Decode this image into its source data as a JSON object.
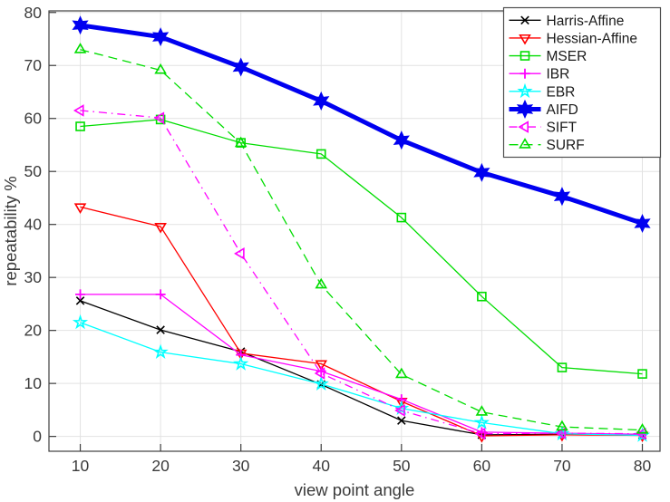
{
  "colors": {
    "background": "#ffffff",
    "grid": "#e2e2e2",
    "axis": "#3f3f3f",
    "tick_label": "#3b3b3b",
    "legend_border": "#4f4f4f",
    "harris": "#000000",
    "hessian": "#ff0000",
    "mser": "#00dd00",
    "ibr": "#ff00ff",
    "ebr": "#00ffff",
    "aifd": "#0000f0",
    "sift": "#ff00ff",
    "surf": "#00dd00"
  },
  "chart_data": {
    "type": "line",
    "xlabel": "view point angle",
    "ylabel": "repeatability %",
    "x": [
      10,
      20,
      30,
      40,
      50,
      60,
      70,
      80
    ],
    "xticks": [
      10,
      20,
      30,
      40,
      50,
      60,
      70,
      80
    ],
    "yticks": [
      0,
      10,
      20,
      30,
      40,
      50,
      60,
      70,
      80
    ],
    "xlim": [
      6.1,
      82.2
    ],
    "ylim": [
      -2.8,
      80.3
    ],
    "grid": true,
    "legend_position": "top-right",
    "series": [
      {
        "name": "Harris-Affine",
        "color": "#000000",
        "line_style": "solid",
        "line_width": 1.3,
        "marker": "x",
        "values": [
          25.6,
          20.1,
          16.0,
          9.8,
          3.0,
          0.3,
          0.4,
          0.3
        ]
      },
      {
        "name": "Hessian-Affine",
        "color": "#ff0000",
        "line_style": "solid",
        "line_width": 1.3,
        "marker": "triangle-down",
        "values": [
          43.3,
          39.6,
          15.7,
          13.7,
          6.6,
          0.1,
          0.3,
          0.2
        ]
      },
      {
        "name": "MSER",
        "color": "#00dd00",
        "line_style": "solid",
        "line_width": 1.3,
        "marker": "square",
        "values": [
          58.5,
          59.8,
          55.4,
          53.3,
          41.3,
          26.4,
          13.0,
          11.8
        ]
      },
      {
        "name": "IBR",
        "color": "#ff00ff",
        "line_style": "solid",
        "line_width": 1.3,
        "marker": "plus",
        "values": [
          26.8,
          26.8,
          15.4,
          12.3,
          7.0,
          0.8,
          0.6,
          0.4
        ]
      },
      {
        "name": "EBR",
        "color": "#00ffff",
        "line_style": "solid",
        "line_width": 1.3,
        "marker": "star5",
        "values": [
          21.5,
          15.9,
          13.7,
          9.9,
          5.3,
          2.6,
          0.5,
          0.2
        ]
      },
      {
        "name": "AIFD",
        "color": "#0000f0",
        "line_style": "solid",
        "line_width": 5,
        "marker": "hexagram-filled",
        "values": [
          77.6,
          75.4,
          69.7,
          63.3,
          55.9,
          49.8,
          45.3,
          40.2
        ]
      },
      {
        "name": "SIFT",
        "color": "#ff00ff",
        "line_style": "dash-dot",
        "line_width": 1.3,
        "marker": "triangle-left",
        "values": [
          61.5,
          60.1,
          34.5,
          11.9,
          4.9,
          0.5,
          0.6,
          0.5
        ]
      },
      {
        "name": "SURF",
        "color": "#00dd00",
        "line_style": "dashed",
        "line_width": 1.3,
        "marker": "triangle-up",
        "values": [
          73.0,
          69.1,
          55.3,
          28.6,
          11.7,
          4.6,
          1.8,
          1.2
        ]
      }
    ]
  }
}
